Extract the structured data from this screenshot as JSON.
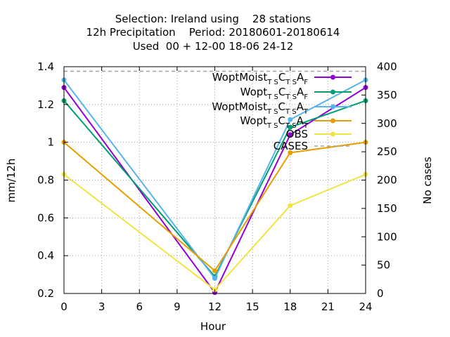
{
  "chart_data": {
    "type": "line",
    "title": [
      "Selection: Ireland using    28 stations",
      "12h Precipitation    Period: 20180601-20180614",
      "Used  00 + 12-00 18-06 24-12"
    ],
    "xlabel": "Hour",
    "ylabel": "mm/12h",
    "y2label": "No cases",
    "xlim": [
      0,
      24
    ],
    "ylim": [
      0.2,
      1.4
    ],
    "y2lim": [
      0,
      400
    ],
    "xticks": [
      "0",
      "3",
      "6",
      "9",
      "12",
      "15",
      "18",
      "21",
      "24"
    ],
    "yticks": [
      "0.2",
      "0.4",
      "0.6",
      "0.8",
      "1",
      "1.2",
      "1.4"
    ],
    "y2ticks": [
      "0",
      "50",
      "100",
      "150",
      "200",
      "250",
      "300",
      "350",
      "400"
    ],
    "grid": true,
    "legend_position": "top-right",
    "x": [
      0,
      12,
      18,
      24
    ],
    "series": [
      {
        "legend": {
          "main1": "WoptMoist",
          "sub1": "T S",
          "main2": "C",
          "sub2": "T S",
          "main3": "A",
          "sub3": "F"
        },
        "color": "#9400d3",
        "axis": "y",
        "values": [
          1.29,
          0.205,
          1.04,
          1.29
        ]
      },
      {
        "legend": {
          "main1": "Wopt",
          "sub1": "T S",
          "main2": "C",
          "sub2": "T S",
          "main3": "A",
          "sub3": "F"
        },
        "color": "#009e73",
        "axis": "y",
        "values": [
          1.22,
          0.29,
          1.08,
          1.22
        ]
      },
      {
        "legend": {
          "main1": "WoptMoist",
          "sub1": "T S",
          "main2": "C",
          "sub2": "T S",
          "main3": "A",
          "sub3": "T"
        },
        "color": "#56b4e9",
        "axis": "y",
        "values": [
          1.33,
          0.28,
          1.12,
          1.33
        ]
      },
      {
        "legend": {
          "main1": "Wopt",
          "sub1": "T S",
          "main2": "C",
          "sub2": "T S",
          "main3": "A",
          "sub3": "T"
        },
        "color": "#e69f00",
        "axis": "y",
        "values": [
          1.0,
          0.32,
          0.945,
          1.0
        ]
      },
      {
        "legend": {
          "main1": "OBS"
        },
        "color": "#f0e442",
        "axis": "y",
        "values": [
          0.83,
          0.22,
          0.665,
          0.83
        ]
      },
      {
        "legend": {
          "main1": "CASES"
        },
        "color": "#a0a0a0",
        "axis": "y2",
        "dashed": true,
        "values": [
          392,
          392,
          392,
          392
        ]
      }
    ]
  }
}
